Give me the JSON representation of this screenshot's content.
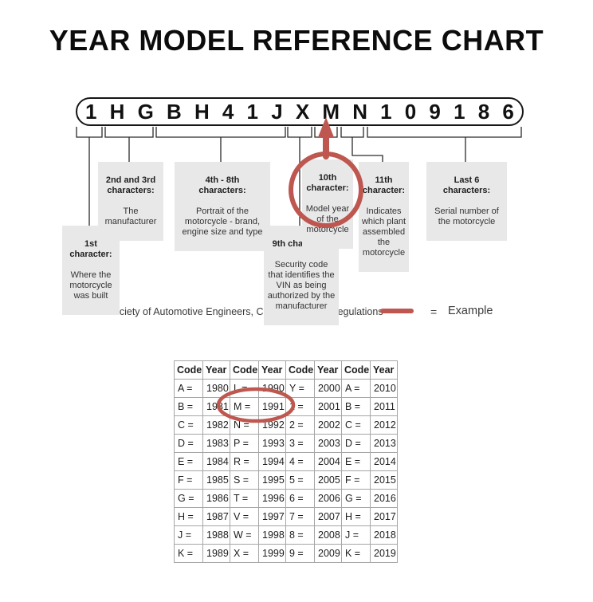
{
  "title": "YEAR MODEL REFERENCE CHART",
  "vin": {
    "chars": [
      "1",
      "H",
      "G",
      "B",
      "H",
      "4",
      "1",
      "J",
      "X",
      "M",
      "N",
      "1",
      "0",
      "9",
      "1",
      "8",
      "6"
    ]
  },
  "callouts": {
    "first": {
      "header": "1st\ncharacter:",
      "body": "Where the\nmotorcycle\nwas built"
    },
    "second_third": {
      "header": "2nd and 3rd\ncharacters:",
      "body": "The\nmanufacturer"
    },
    "fourth_eighth": {
      "header": "4th - 8th\ncharacters:",
      "body": "Portrait of the\nmotorcycle - brand,\nengine size and type"
    },
    "ninth": {
      "header": "9th character:",
      "body": "Security code\nthat identifies the\nVIN as being\nauthorized by the\nmanufacturer"
    },
    "tenth": {
      "header": "10th\ncharacter:",
      "body": "Model year\nof the\nmotorcycle"
    },
    "eleventh": {
      "header": "11th\ncharacter:",
      "body": "Indicates\nwhich plant\nassembled\nthe\nmotorcycle"
    },
    "last6": {
      "header": "Last 6\ncharacters:",
      "body": "Serial number of\nthe motorcycle"
    }
  },
  "source_line": "Source:  Society of Automotive Engineers, Code of Federal Regulations",
  "legend": {
    "equals": "=",
    "label": "Example"
  },
  "colors": {
    "accent_red": "#bd574f",
    "box_gray": "#e8e8e8",
    "line_black": "#2b2b2b"
  },
  "table": {
    "headers": [
      "Code",
      "Year",
      "Code",
      "Year",
      "Code",
      "Year",
      "Code",
      "Year"
    ],
    "rows": [
      [
        "A =",
        "1980",
        "L =",
        "1990",
        "Y =",
        "2000",
        "A =",
        "2010"
      ],
      [
        "B =",
        "1981",
        "M =",
        "1991",
        "1 =",
        "2001",
        "B =",
        "2011"
      ],
      [
        "C =",
        "1982",
        "N =",
        "1992",
        "2 =",
        "2002",
        "C =",
        "2012"
      ],
      [
        "D =",
        "1983",
        "P =",
        "1993",
        "3 =",
        "2003",
        "D =",
        "2013"
      ],
      [
        "E =",
        "1984",
        "R =",
        "1994",
        "4 =",
        "2004",
        "E =",
        "2014"
      ],
      [
        "F =",
        "1985",
        "S =",
        "1995",
        "5 =",
        "2005",
        "F =",
        "2015"
      ],
      [
        "G =",
        "1986",
        "T =",
        "1996",
        "6 =",
        "2006",
        "G =",
        "2016"
      ],
      [
        "H =",
        "1987",
        "V =",
        "1997",
        "7 =",
        "2007",
        "H =",
        "2017"
      ],
      [
        "J =",
        "1988",
        "W =",
        "1998",
        "8 =",
        "2008",
        "J =",
        "2018"
      ],
      [
        "K =",
        "1989",
        "X =",
        "1999",
        "9 =",
        "2009",
        "K =",
        "2019"
      ]
    ]
  }
}
